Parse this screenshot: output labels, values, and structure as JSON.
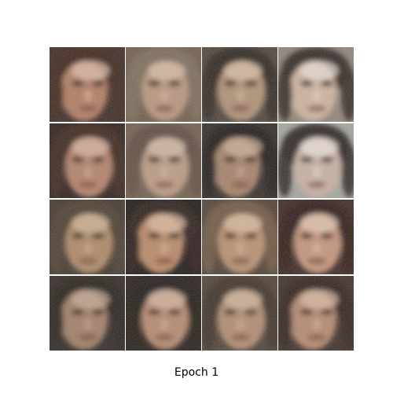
{
  "caption": "Epoch 1",
  "grid": {
    "rows": 4,
    "cols": 4,
    "tiles": [
      {
        "content": "generated-face",
        "bg": "#3a2620",
        "skin": "#b07a5e",
        "hair": "#3b2418",
        "highlight": "#e2c2ae"
      },
      {
        "content": "generated-face",
        "bg": "#6d5a49",
        "skin": "#b8947a",
        "hair": "#7a6a58",
        "highlight": "#d9c0a6"
      },
      {
        "content": "generated-face",
        "bg": "#4b4138",
        "skin": "#b08f73",
        "hair": "#2c241e",
        "highlight": "#dcc1a6"
      },
      {
        "content": "generated-face",
        "bg": "#8f8275",
        "skin": "#cdb29c",
        "hair": "#2d2620",
        "highlight": "#ebe0d6"
      },
      {
        "content": "generated-face",
        "bg": "#2b1a17",
        "skin": "#b27f66",
        "hair": "#3a2118",
        "highlight": "#d8b5a2"
      },
      {
        "content": "generated-face",
        "bg": "#6f5b4a",
        "skin": "#b99a80",
        "hair": "#5c4a3c",
        "highlight": "#d5bca6"
      },
      {
        "content": "generated-face",
        "bg": "#2f2823",
        "skin": "#a48066",
        "hair": "#1f1915",
        "highlight": "#cdb09a"
      },
      {
        "content": "generated-face",
        "bg": "#a3a49c",
        "skin": "#c8b0a0",
        "hair": "#2a2420",
        "highlight": "#efe6de"
      },
      {
        "content": "generated-face",
        "bg": "#3f3328",
        "skin": "#ad8664",
        "hair": "#4a3a2b",
        "highlight": "#d2b498"
      },
      {
        "content": "generated-face",
        "bg": "#1a1412",
        "skin": "#b98764",
        "hair": "#2a1b14",
        "highlight": "#e0bfa4"
      },
      {
        "content": "generated-face",
        "bg": "#4e3d31",
        "skin": "#b88e6e",
        "hair": "#6e553f",
        "highlight": "#dcbfa2"
      },
      {
        "content": "generated-face",
        "bg": "#3a231d",
        "skin": "#c49278",
        "hair": "#2b1813",
        "highlight": "#e6cab6"
      },
      {
        "content": "generated-face",
        "bg": "#2e2520",
        "skin": "#9f7b62",
        "hair": "#241c17",
        "highlight": "#c8ab96"
      },
      {
        "content": "generated-face",
        "bg": "#241a17",
        "skin": "#b5876c",
        "hair": "#1f1612",
        "highlight": "#d8b7a0"
      },
      {
        "content": "generated-face",
        "bg": "#4c3e33",
        "skin": "#b08a6e",
        "hair": "#3a2d23",
        "highlight": "#d4b89f"
      },
      {
        "content": "generated-face",
        "bg": "#3b2a23",
        "skin": "#b4876c",
        "hair": "#2f1f18",
        "highlight": "#dcbca6"
      }
    ]
  }
}
